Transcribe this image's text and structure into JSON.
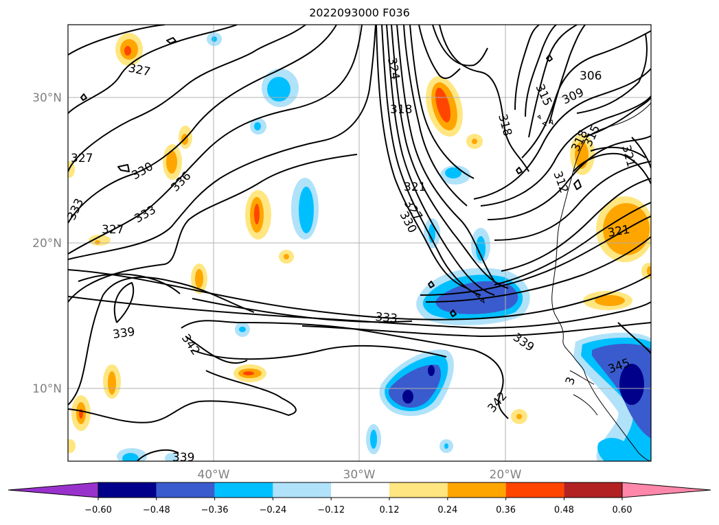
{
  "title": "2022093000 F036",
  "map": {
    "lat_ticks": [
      "30°N",
      "20°N",
      "10°N"
    ],
    "lon_ticks": [
      "40°W",
      "30°W",
      "20°W"
    ],
    "grid": true
  },
  "colorbar": {
    "extend": "both",
    "colors": [
      "#9932cc",
      "#00008b",
      "#3a5bcd",
      "#00bfff",
      "#b0e2fa",
      "#ffffff",
      "#ffe680",
      "#ffa500",
      "#ff4500",
      "#b22222",
      "#ff88aa"
    ],
    "tick_labels": [
      "−0.60",
      "−0.48",
      "−0.36",
      "−0.24",
      "−0.12",
      "0.12",
      "0.24",
      "0.36",
      "0.48",
      "0.60"
    ]
  },
  "contours": {
    "labels": [
      {
        "text": "327"
      },
      {
        "text": "327"
      },
      {
        "text": "330"
      },
      {
        "text": "333"
      },
      {
        "text": "333"
      },
      {
        "text": "327"
      },
      {
        "text": "336"
      },
      {
        "text": "324"
      },
      {
        "text": "318"
      },
      {
        "text": "321"
      },
      {
        "text": "327"
      },
      {
        "text": "330"
      },
      {
        "text": "333"
      },
      {
        "text": "339"
      },
      {
        "text": "342"
      },
      {
        "text": "339"
      },
      {
        "text": "342"
      },
      {
        "text": "339"
      },
      {
        "text": "306"
      },
      {
        "text": "309"
      },
      {
        "text": "315"
      },
      {
        "text": "318"
      },
      {
        "text": "318"
      },
      {
        "text": "315"
      },
      {
        "text": "312"
      },
      {
        "text": "321"
      },
      {
        "text": "321"
      },
      {
        "text": "345"
      },
      {
        "text": "3"
      }
    ]
  }
}
